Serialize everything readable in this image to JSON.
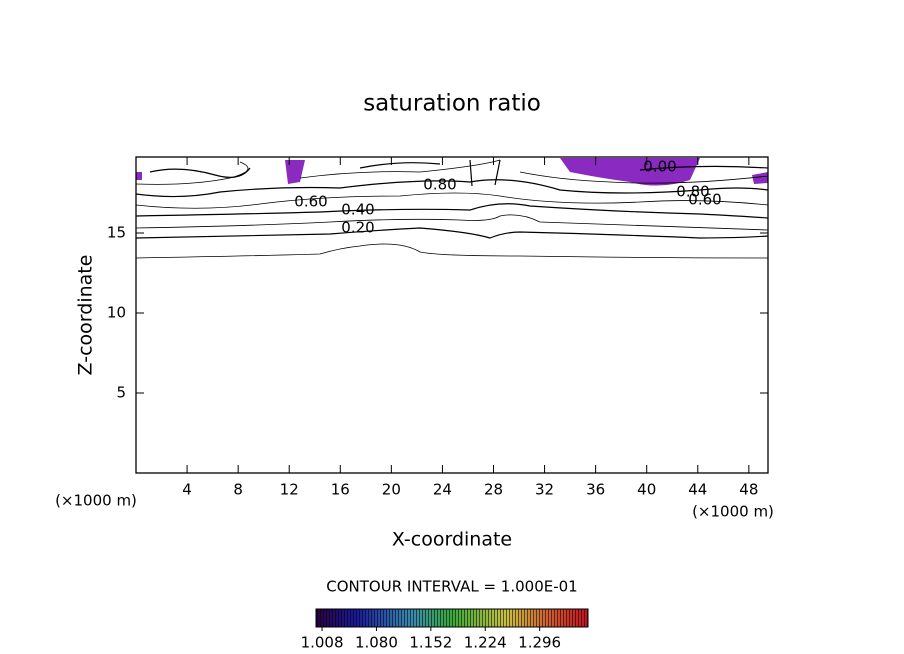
{
  "chart_data": {
    "type": "contour",
    "title": "saturation ratio",
    "x_label": "X-coordinate",
    "y_label": "Z-coordinate",
    "x_unit_label": "(×1000 m)",
    "xlim": [
      0,
      49.5
    ],
    "ylim": [
      0,
      19.75
    ],
    "xticks": [
      4,
      8,
      12,
      16,
      20,
      24,
      28,
      32,
      36,
      40,
      44,
      48
    ],
    "yticks": [
      5,
      10,
      15
    ],
    "contour_labels": [
      "0.20",
      "0.40",
      "0.60",
      "0.80",
      "0.80",
      "0.60",
      "0.00"
    ],
    "contour_interval": "CONTOUR INTERVAL = 1.000E-01",
    "colorbar": {
      "clim": [
        1.0,
        1.36
      ],
      "ticks": [
        {
          "value": 1.008,
          "label": "1.008"
        },
        {
          "value": 1.08,
          "label": "1.080"
        },
        {
          "value": 1.152,
          "label": "1.152"
        },
        {
          "value": 1.224,
          "label": "1.224"
        },
        {
          "value": 1.296,
          "label": "1.296"
        }
      ]
    }
  }
}
